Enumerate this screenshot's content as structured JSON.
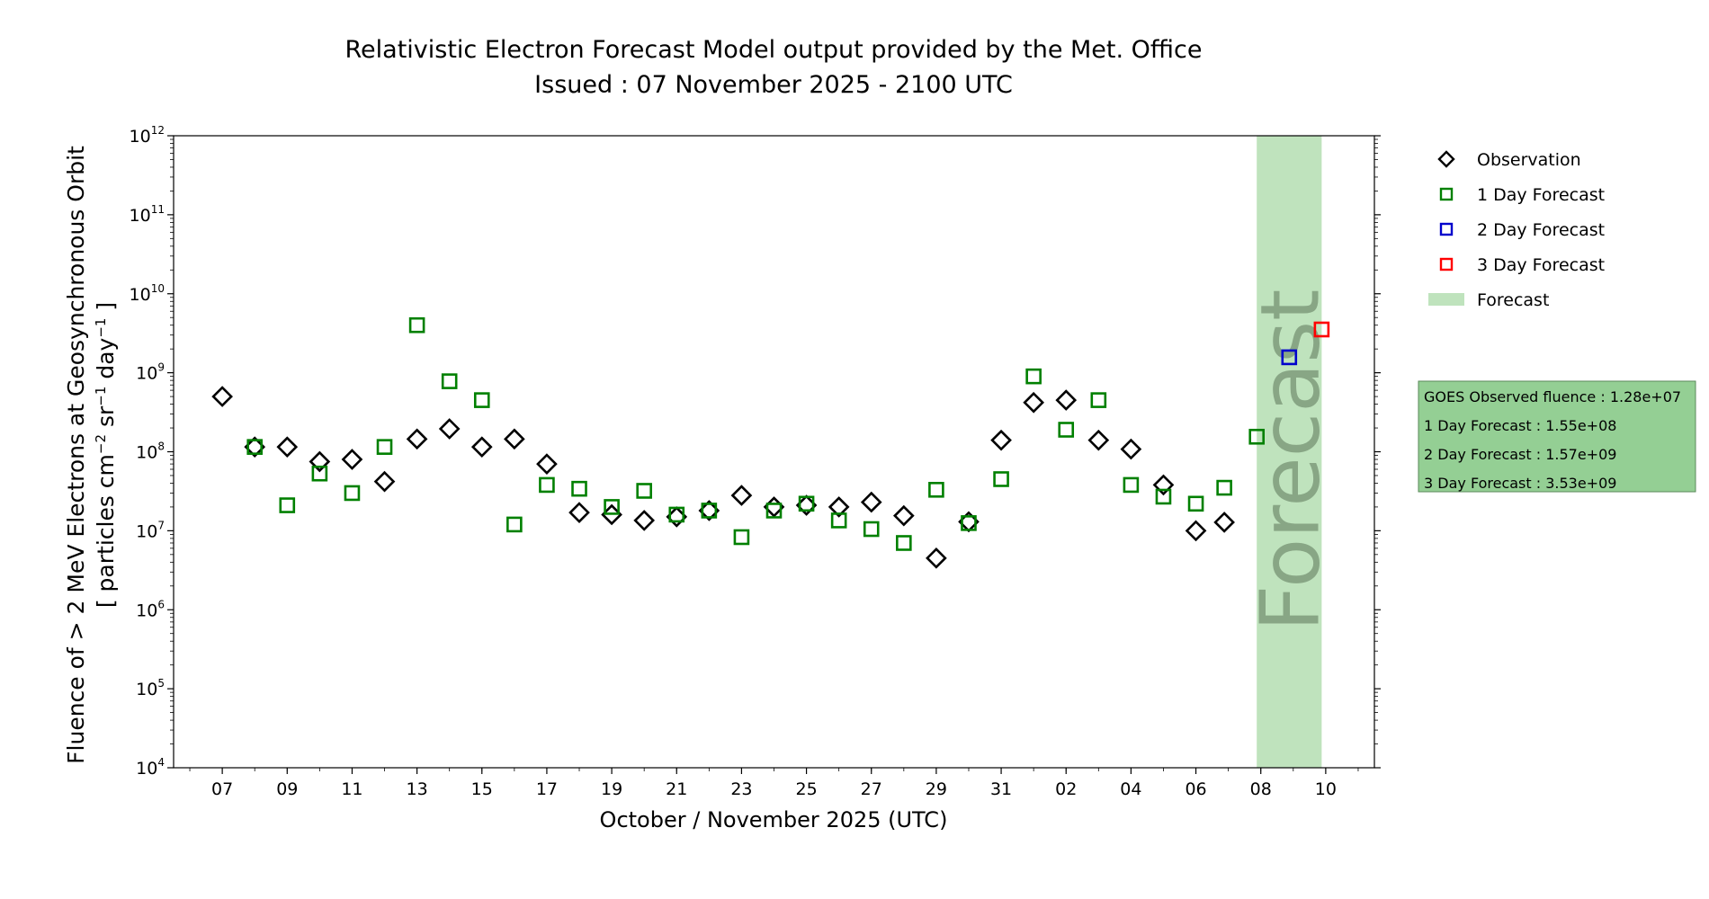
{
  "chart_data": {
    "type": "scatter",
    "title": "Relativistic Electron Forecast Model output provided by the Met. Office",
    "subtitle": "Issued : 07 November 2025 - 2100 UTC",
    "xlabel": "October / November 2025 (UTC)",
    "ylabel_line1": "Fluence of > 2 MeV Electrons at Geosynchronous Orbit",
    "ylabel_line2": "[ particles cm",
    "ylabel_line2_sup1": "−2",
    "ylabel_line2_mid": " sr",
    "ylabel_line2_sup2": "−1",
    "ylabel_line2_mid2": " day",
    "ylabel_line2_sup3": "−1",
    "ylabel_line2_end": " ]",
    "y_scale": "log",
    "ylim": [
      10000,
      1000000000000
    ],
    "xlim": [
      "2025-10-05T12:00",
      "2025-11-11T12:00"
    ],
    "y_ticks": [
      {
        "base": "10",
        "exp": "4",
        "value": 10000
      },
      {
        "base": "10",
        "exp": "5",
        "value": 100000
      },
      {
        "base": "10",
        "exp": "6",
        "value": 1000000
      },
      {
        "base": "10",
        "exp": "7",
        "value": 10000000
      },
      {
        "base": "10",
        "exp": "8",
        "value": 100000000
      },
      {
        "base": "10",
        "exp": "9",
        "value": 1000000000
      },
      {
        "base": "10",
        "exp": "10",
        "value": 10000000000
      },
      {
        "base": "10",
        "exp": "11",
        "value": 100000000000
      },
      {
        "base": "10",
        "exp": "12",
        "value": 1000000000000
      }
    ],
    "x_ticks": [
      {
        "label": "07",
        "date": "2025-10-07"
      },
      {
        "label": "09",
        "date": "2025-10-09"
      },
      {
        "label": "11",
        "date": "2025-10-11"
      },
      {
        "label": "13",
        "date": "2025-10-13"
      },
      {
        "label": "15",
        "date": "2025-10-15"
      },
      {
        "label": "17",
        "date": "2025-10-17"
      },
      {
        "label": "19",
        "date": "2025-10-19"
      },
      {
        "label": "21",
        "date": "2025-10-21"
      },
      {
        "label": "23",
        "date": "2025-10-23"
      },
      {
        "label": "25",
        "date": "2025-10-25"
      },
      {
        "label": "27",
        "date": "2025-10-27"
      },
      {
        "label": "29",
        "date": "2025-10-29"
      },
      {
        "label": "31",
        "date": "2025-10-31"
      },
      {
        "label": "02",
        "date": "2025-11-02"
      },
      {
        "label": "04",
        "date": "2025-11-04"
      },
      {
        "label": "06",
        "date": "2025-11-06"
      },
      {
        "label": "08",
        "date": "2025-11-08"
      },
      {
        "label": "10",
        "date": "2025-11-10"
      }
    ],
    "forecast_band": {
      "start": "2025-11-07T21:00",
      "end": "2025-11-09T21:00",
      "label": "Forecast",
      "color": "#bfe3bd"
    },
    "series": [
      {
        "name": "Observation",
        "marker": "diamond",
        "color": "#000000",
        "points": [
          {
            "x": "2025-10-07",
            "y": 500000000
          },
          {
            "x": "2025-10-08",
            "y": 115000000
          },
          {
            "x": "2025-10-09",
            "y": 115000000
          },
          {
            "x": "2025-10-10",
            "y": 75000000
          },
          {
            "x": "2025-10-11",
            "y": 80000000
          },
          {
            "x": "2025-10-12",
            "y": 42000000
          },
          {
            "x": "2025-10-13",
            "y": 145000000
          },
          {
            "x": "2025-10-14",
            "y": 195000000
          },
          {
            "x": "2025-10-15",
            "y": 115000000
          },
          {
            "x": "2025-10-16",
            "y": 145000000
          },
          {
            "x": "2025-10-17",
            "y": 70000000
          },
          {
            "x": "2025-10-18",
            "y": 17000000
          },
          {
            "x": "2025-10-19",
            "y": 16000000
          },
          {
            "x": "2025-10-20",
            "y": 13500000
          },
          {
            "x": "2025-10-21",
            "y": 15000000
          },
          {
            "x": "2025-10-22",
            "y": 18000000
          },
          {
            "x": "2025-10-23",
            "y": 28000000
          },
          {
            "x": "2025-10-24",
            "y": 20000000
          },
          {
            "x": "2025-10-25",
            "y": 21000000
          },
          {
            "x": "2025-10-26",
            "y": 20000000
          },
          {
            "x": "2025-10-27",
            "y": 23000000
          },
          {
            "x": "2025-10-28",
            "y": 15500000
          },
          {
            "x": "2025-10-29",
            "y": 4500000
          },
          {
            "x": "2025-10-30",
            "y": 13000000
          },
          {
            "x": "2025-10-31",
            "y": 140000000
          },
          {
            "x": "2025-11-01",
            "y": 420000000
          },
          {
            "x": "2025-11-02",
            "y": 450000000
          },
          {
            "x": "2025-11-03",
            "y": 140000000
          },
          {
            "x": "2025-11-04",
            "y": 108000000
          },
          {
            "x": "2025-11-05",
            "y": 38000000
          },
          {
            "x": "2025-11-06",
            "y": 10000000
          },
          {
            "x": "2025-11-06T21:00",
            "y": 12800000
          }
        ]
      },
      {
        "name": "1 Day Forecast",
        "marker": "square",
        "color": "#008000",
        "points": [
          {
            "x": "2025-10-08",
            "y": 115000000
          },
          {
            "x": "2025-10-09",
            "y": 21000000
          },
          {
            "x": "2025-10-10",
            "y": 53000000
          },
          {
            "x": "2025-10-11",
            "y": 30000000
          },
          {
            "x": "2025-10-12",
            "y": 115000000
          },
          {
            "x": "2025-10-13",
            "y": 4000000000
          },
          {
            "x": "2025-10-14",
            "y": 780000000
          },
          {
            "x": "2025-10-15",
            "y": 450000000
          },
          {
            "x": "2025-10-16",
            "y": 12000000
          },
          {
            "x": "2025-10-17",
            "y": 38000000
          },
          {
            "x": "2025-10-18",
            "y": 34000000
          },
          {
            "x": "2025-10-19",
            "y": 20000000
          },
          {
            "x": "2025-10-20",
            "y": 32000000
          },
          {
            "x": "2025-10-21",
            "y": 16000000
          },
          {
            "x": "2025-10-22",
            "y": 18000000
          },
          {
            "x": "2025-10-23",
            "y": 8300000
          },
          {
            "x": "2025-10-24",
            "y": 18000000
          },
          {
            "x": "2025-10-25",
            "y": 22000000
          },
          {
            "x": "2025-10-26",
            "y": 13500000
          },
          {
            "x": "2025-10-27",
            "y": 10500000
          },
          {
            "x": "2025-10-28",
            "y": 7000000
          },
          {
            "x": "2025-10-29",
            "y": 33000000
          },
          {
            "x": "2025-10-30",
            "y": 12500000
          },
          {
            "x": "2025-10-31",
            "y": 45000000
          },
          {
            "x": "2025-11-01",
            "y": 900000000
          },
          {
            "x": "2025-11-02",
            "y": 190000000
          },
          {
            "x": "2025-11-03",
            "y": 450000000
          },
          {
            "x": "2025-11-04",
            "y": 38000000
          },
          {
            "x": "2025-11-05",
            "y": 27000000
          },
          {
            "x": "2025-11-06",
            "y": 22000000
          },
          {
            "x": "2025-11-06T21:00",
            "y": 35000000
          },
          {
            "x": "2025-11-07T21:00",
            "y": 155000000
          }
        ]
      },
      {
        "name": "2 Day Forecast",
        "marker": "square",
        "color": "#0000cc",
        "points": [
          {
            "x": "2025-11-08T21:00",
            "y": 1570000000
          }
        ]
      },
      {
        "name": "3 Day Forecast",
        "marker": "square",
        "color": "#ff0000",
        "points": [
          {
            "x": "2025-11-09T21:00",
            "y": 3530000000
          }
        ]
      }
    ],
    "legend": {
      "placement": "outside-right",
      "items": [
        {
          "label": "Observation",
          "marker": "diamond",
          "color": "#000000"
        },
        {
          "label": "1 Day Forecast",
          "marker": "square",
          "color": "#008000"
        },
        {
          "label": "2 Day Forecast",
          "marker": "square",
          "color": "#0000cc"
        },
        {
          "label": "3 Day Forecast",
          "marker": "square",
          "color": "#ff0000"
        },
        {
          "label": "Forecast",
          "marker": "patch",
          "color": "#bfe3bd"
        }
      ]
    },
    "info_box": {
      "background": "#94cf94",
      "lines": [
        "GOES Observed fluence : 1.28e+07",
        "1 Day Forecast : 1.55e+08",
        "2 Day Forecast : 1.57e+09",
        "3 Day Forecast : 3.53e+09"
      ]
    }
  }
}
